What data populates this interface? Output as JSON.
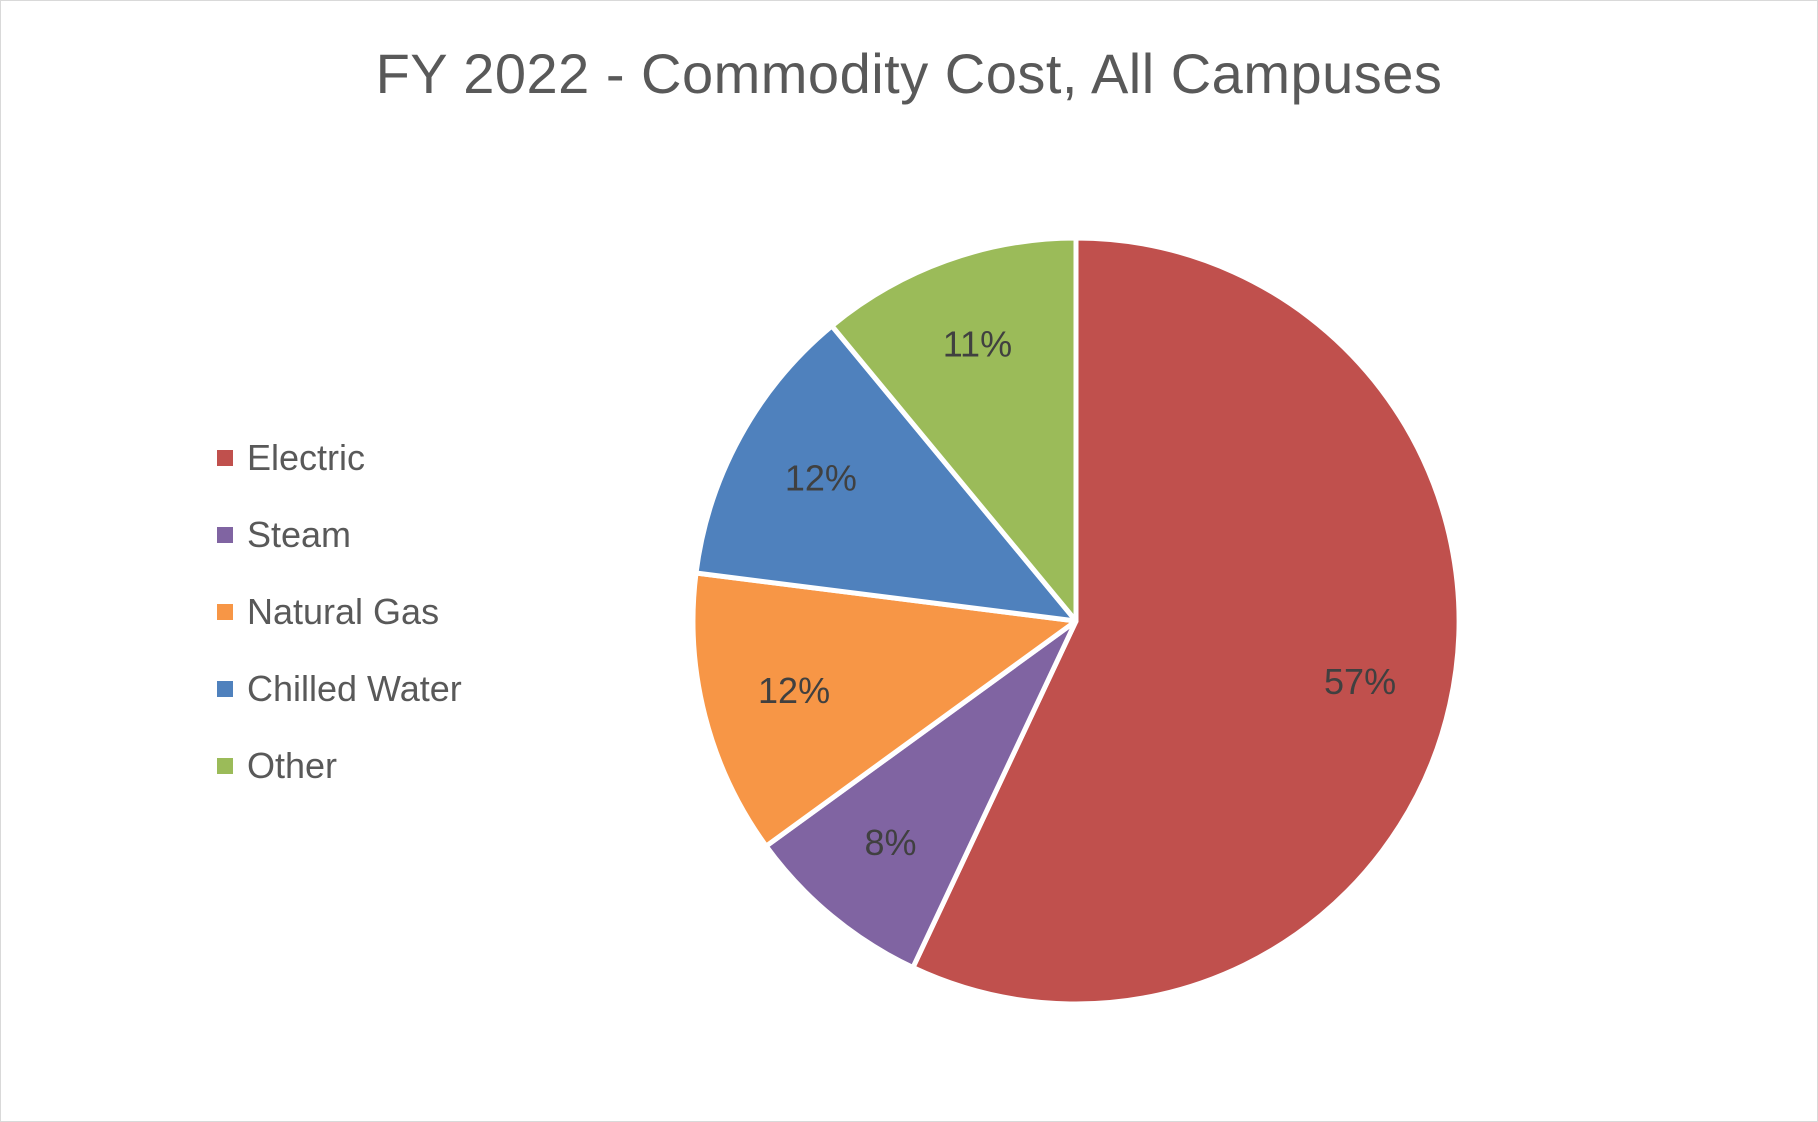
{
  "chart_data": {
    "type": "pie",
    "title": "FY 2022 - Commodity Cost, All Campuses",
    "categories": [
      "Electric",
      "Steam",
      "Natural Gas",
      "Chilled Water",
      "Other"
    ],
    "values": [
      57,
      8,
      12,
      12,
      11
    ],
    "labels": [
      "57%",
      "8%",
      "12%",
      "12%",
      "11%"
    ],
    "colors": [
      "#c0504d",
      "#8064a2",
      "#f79646",
      "#4f81bd",
      "#9bbb59"
    ],
    "legend_position": "left",
    "start_angle": "12 o'clock",
    "direction": "clockwise"
  }
}
